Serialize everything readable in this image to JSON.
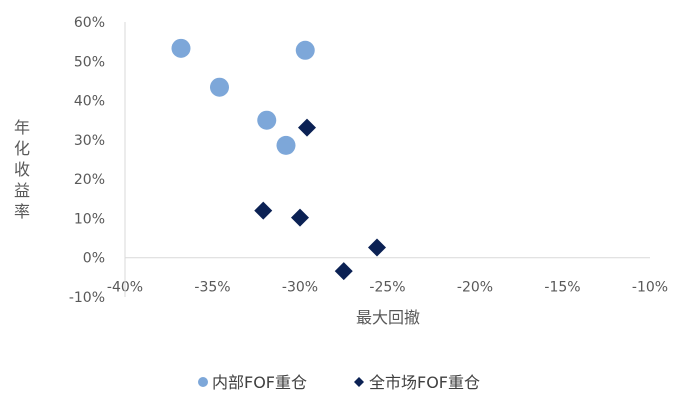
{
  "chart_data": {
    "type": "scatter",
    "xlabel": "最大回撤",
    "ylabel": "年化收益率",
    "xlim": [
      -40,
      -10
    ],
    "ylim": [
      -10,
      60
    ],
    "x_ticks": [
      -40,
      -35,
      -30,
      -25,
      -20,
      -15,
      -10
    ],
    "y_ticks": [
      -10,
      0,
      10,
      20,
      30,
      40,
      50,
      60
    ],
    "x_tick_labels": [
      "-40%",
      "-35%",
      "-30%",
      "-25%",
      "-20%",
      "-15%",
      "-10%"
    ],
    "y_tick_labels": [
      "-10%",
      "0%",
      "10%",
      "20%",
      "30%",
      "40%",
      "50%",
      "60%"
    ],
    "grid": false,
    "legend_position": "bottom",
    "series": [
      {
        "name": "内部FOF重仓",
        "marker": "circle",
        "color": "#7DA7D9",
        "points": [
          {
            "x": -36.8,
            "y": 53.3
          },
          {
            "x": -29.7,
            "y": 52.8
          },
          {
            "x": -34.6,
            "y": 43.4
          },
          {
            "x": -31.9,
            "y": 35.0
          },
          {
            "x": -30.8,
            "y": 28.6
          }
        ]
      },
      {
        "name": "全市场FOF重仓",
        "marker": "diamond",
        "color": "#0B2154",
        "points": [
          {
            "x": -29.6,
            "y": 33.1
          },
          {
            "x": -32.1,
            "y": 12.0
          },
          {
            "x": -30.0,
            "y": 10.2
          },
          {
            "x": -25.6,
            "y": 2.6
          },
          {
            "x": -27.5,
            "y": -3.4
          }
        ]
      }
    ]
  }
}
